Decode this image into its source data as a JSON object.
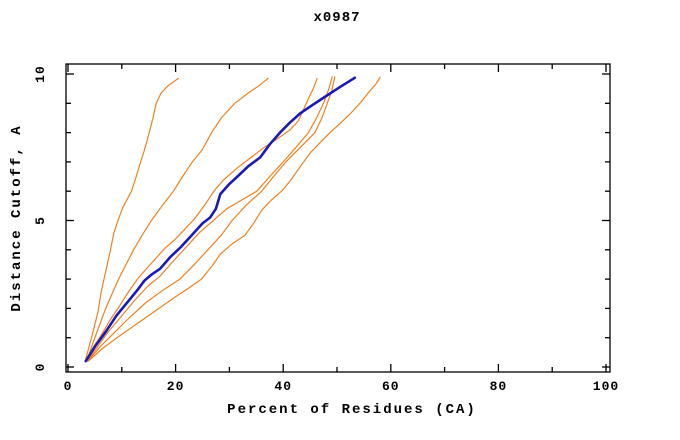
{
  "title": "x0987",
  "axes": {
    "xlabel": "Percent of Residues (CA)",
    "ylabel": "Distance Cutoff, A",
    "x_major_ticks": [
      0,
      20,
      40,
      60,
      80,
      100
    ],
    "x_minor_ticks": [
      10,
      30,
      50,
      70,
      90
    ],
    "y_major_ticks": [
      0,
      5,
      10
    ],
    "y_minor_ticks": [
      1,
      2,
      3,
      4,
      6,
      7,
      8,
      9
    ],
    "x_tick_labels": [
      "0",
      "20",
      "40",
      "60",
      "80",
      "100"
    ],
    "y_tick_labels": [
      "0",
      "5",
      "10"
    ]
  },
  "colors": {
    "background": "#ffffff",
    "axis": "#000000",
    "trace_orange": "#f08220",
    "trace_blue": "#1a1ab8"
  },
  "chart_data": {
    "type": "line",
    "title": "x0987",
    "xlabel": "Percent of Residues (CA)",
    "ylabel": "Distance Cutoff, A",
    "xlim": [
      0,
      101
    ],
    "ylim": [
      -0.2,
      10.3
    ],
    "grid": false,
    "legend": "none",
    "series": [
      {
        "name": "orange-curve-1",
        "color": "#f08220",
        "width": 1.2,
        "points": [
          [
            3.2,
            0.2
          ],
          [
            4.0,
            0.75
          ],
          [
            4.8,
            1.3
          ],
          [
            5.6,
            1.9
          ],
          [
            6.1,
            2.5
          ],
          [
            6.7,
            3.0
          ],
          [
            7.3,
            3.5
          ],
          [
            7.9,
            4.0
          ],
          [
            8.5,
            4.55
          ],
          [
            9.3,
            5.0
          ],
          [
            10.2,
            5.45
          ],
          [
            11.8,
            6.0
          ],
          [
            12.6,
            6.45
          ],
          [
            13.4,
            6.95
          ],
          [
            14.2,
            7.4
          ],
          [
            15.1,
            8.0
          ],
          [
            15.8,
            8.5
          ],
          [
            16.4,
            9.0
          ],
          [
            17.3,
            9.35
          ],
          [
            18.6,
            9.6
          ],
          [
            20.5,
            9.85
          ]
        ]
      },
      {
        "name": "orange-curve-2",
        "color": "#f08220",
        "width": 1.2,
        "points": [
          [
            3.5,
            0.2
          ],
          [
            4.6,
            0.8
          ],
          [
            5.8,
            1.4
          ],
          [
            7.0,
            2.0
          ],
          [
            8.2,
            2.5
          ],
          [
            9.4,
            3.0
          ],
          [
            10.8,
            3.5
          ],
          [
            12.2,
            4.0
          ],
          [
            13.8,
            4.5
          ],
          [
            15.5,
            5.0
          ],
          [
            17.5,
            5.5
          ],
          [
            19.6,
            6.0
          ],
          [
            21.3,
            6.5
          ],
          [
            23.1,
            7.0
          ],
          [
            24.9,
            7.4
          ],
          [
            26.7,
            8.0
          ],
          [
            28.5,
            8.5
          ],
          [
            31.0,
            9.0
          ],
          [
            33.5,
            9.35
          ],
          [
            35.5,
            9.6
          ],
          [
            37.2,
            9.85
          ]
        ]
      },
      {
        "name": "orange-curve-3",
        "color": "#f08220",
        "width": 1.2,
        "points": [
          [
            3.4,
            0.2
          ],
          [
            4.8,
            0.7
          ],
          [
            6.2,
            1.1
          ],
          [
            7.8,
            1.6
          ],
          [
            9.3,
            2.0
          ],
          [
            11.0,
            2.5
          ],
          [
            12.9,
            3.0
          ],
          [
            14.8,
            3.4
          ],
          [
            16.3,
            3.7
          ],
          [
            18.0,
            4.05
          ],
          [
            19.9,
            4.35
          ],
          [
            21.7,
            4.7
          ],
          [
            23.5,
            5.05
          ],
          [
            25.5,
            5.55
          ],
          [
            27.1,
            6.0
          ],
          [
            29.0,
            6.4
          ],
          [
            31.5,
            6.8
          ],
          [
            34.0,
            7.15
          ],
          [
            36.5,
            7.5
          ],
          [
            39.0,
            7.8
          ],
          [
            41.3,
            8.1
          ],
          [
            42.8,
            8.4
          ],
          [
            43.8,
            8.8
          ],
          [
            44.8,
            9.2
          ],
          [
            45.6,
            9.5
          ],
          [
            46.3,
            9.85
          ]
        ]
      },
      {
        "name": "orange-curve-4",
        "color": "#f08220",
        "width": 1.2,
        "points": [
          [
            3.6,
            0.2
          ],
          [
            5.5,
            0.7
          ],
          [
            7.5,
            1.2
          ],
          [
            10.0,
            1.75
          ],
          [
            12.5,
            2.3
          ],
          [
            14.8,
            2.75
          ],
          [
            17.1,
            3.1
          ],
          [
            19.5,
            3.6
          ],
          [
            22.0,
            4.1
          ],
          [
            24.5,
            4.6
          ],
          [
            27.0,
            5.0
          ],
          [
            29.5,
            5.4
          ],
          [
            32.3,
            5.7
          ],
          [
            35.1,
            6.0
          ],
          [
            37.5,
            6.5
          ],
          [
            40.0,
            7.0
          ],
          [
            42.4,
            7.5
          ],
          [
            44.7,
            8.0
          ],
          [
            46.2,
            8.5
          ],
          [
            47.5,
            9.0
          ],
          [
            48.5,
            9.5
          ],
          [
            49.1,
            9.9
          ]
        ]
      },
      {
        "name": "orange-curve-5",
        "color": "#f08220",
        "width": 1.2,
        "points": [
          [
            3.7,
            0.2
          ],
          [
            6.0,
            0.7
          ],
          [
            8.5,
            1.15
          ],
          [
            11.5,
            1.7
          ],
          [
            14.5,
            2.2
          ],
          [
            17.5,
            2.6
          ],
          [
            20.8,
            3.0
          ],
          [
            23.5,
            3.5
          ],
          [
            26.0,
            4.0
          ],
          [
            28.5,
            4.5
          ],
          [
            30.5,
            5.0
          ],
          [
            33.0,
            5.5
          ],
          [
            36.0,
            6.0
          ],
          [
            38.2,
            6.5
          ],
          [
            40.5,
            7.0
          ],
          [
            43.2,
            7.5
          ],
          [
            45.9,
            8.0
          ],
          [
            47.2,
            8.5
          ],
          [
            48.2,
            9.0
          ],
          [
            49.0,
            9.4
          ],
          [
            49.6,
            9.9
          ]
        ]
      },
      {
        "name": "orange-curve-6",
        "color": "#f08220",
        "width": 1.2,
        "points": [
          [
            3.8,
            0.2
          ],
          [
            6.5,
            0.65
          ],
          [
            9.5,
            1.05
          ],
          [
            13.0,
            1.5
          ],
          [
            16.5,
            1.95
          ],
          [
            20.0,
            2.4
          ],
          [
            22.5,
            2.7
          ],
          [
            24.8,
            3.0
          ],
          [
            26.8,
            3.45
          ],
          [
            28.3,
            3.85
          ],
          [
            30.5,
            4.2
          ],
          [
            32.9,
            4.5
          ],
          [
            34.5,
            4.9
          ],
          [
            36.0,
            5.35
          ],
          [
            37.8,
            5.7
          ],
          [
            39.7,
            6.0
          ],
          [
            41.5,
            6.4
          ],
          [
            43.4,
            6.9
          ],
          [
            45.0,
            7.3
          ],
          [
            46.8,
            7.65
          ],
          [
            48.7,
            8.0
          ],
          [
            50.5,
            8.3
          ],
          [
            52.5,
            8.65
          ],
          [
            54.5,
            9.05
          ],
          [
            56.0,
            9.4
          ],
          [
            57.2,
            9.65
          ],
          [
            58.0,
            9.88
          ]
        ]
      },
      {
        "name": "blue-main-curve",
        "color": "#1a1ab8",
        "width": 2.6,
        "points": [
          [
            3.3,
            0.2
          ],
          [
            5.0,
            0.7
          ],
          [
            7.0,
            1.2
          ],
          [
            9.0,
            1.75
          ],
          [
            11.0,
            2.2
          ],
          [
            13.0,
            2.65
          ],
          [
            14.2,
            2.95
          ],
          [
            15.5,
            3.15
          ],
          [
            17.1,
            3.35
          ],
          [
            19.0,
            3.75
          ],
          [
            21.0,
            4.1
          ],
          [
            23.0,
            4.5
          ],
          [
            25.0,
            4.9
          ],
          [
            26.4,
            5.1
          ],
          [
            27.5,
            5.4
          ],
          [
            28.3,
            5.9
          ],
          [
            30.0,
            6.25
          ],
          [
            31.5,
            6.5
          ],
          [
            33.5,
            6.85
          ],
          [
            35.7,
            7.15
          ],
          [
            37.5,
            7.6
          ],
          [
            39.4,
            8.0
          ],
          [
            41.3,
            8.35
          ],
          [
            43.1,
            8.65
          ],
          [
            45.5,
            8.95
          ],
          [
            48.0,
            9.25
          ],
          [
            50.5,
            9.55
          ],
          [
            53.3,
            9.87
          ]
        ]
      }
    ]
  }
}
